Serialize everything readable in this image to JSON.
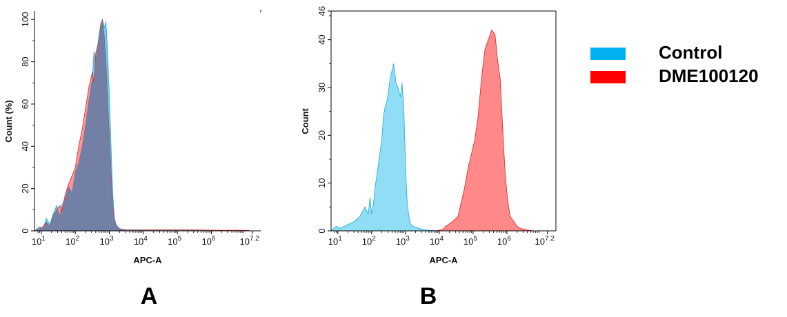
{
  "colors": {
    "control_fill": "#4DC8F0",
    "control_legend": "#00B0F0",
    "sample_fill": "#FF4040",
    "sample_legend": "#FF0000",
    "overlap_fill": "#6E7FA6",
    "axis": "#000000"
  },
  "legend": {
    "items": [
      {
        "label": "Control",
        "color": "#00B0F0"
      },
      {
        "label": "DME100120",
        "color": "#FF0000"
      }
    ]
  },
  "chart_data": [
    {
      "type": "area",
      "panel": "A",
      "xlabel": "APC-A",
      "ylabel": "Count (%)",
      "xscale": "log",
      "xlim": [
        0.8,
        7.45
      ],
      "ylim": [
        0,
        104
      ],
      "xticks": [
        {
          "base": "10",
          "exp": "1",
          "pos": 1
        },
        {
          "base": "10",
          "exp": "2",
          "pos": 2
        },
        {
          "base": "10",
          "exp": "3",
          "pos": 3
        },
        {
          "base": "10",
          "exp": "4",
          "pos": 4
        },
        {
          "base": "10",
          "exp": "5",
          "pos": 5
        },
        {
          "base": "10",
          "exp": "6",
          "pos": 6
        },
        {
          "base": "10",
          "exp": "7.2",
          "pos": 7.2
        }
      ],
      "yticks": [
        {
          "label": "0",
          "pos": 0
        },
        {
          "label": "20",
          "pos": 20
        },
        {
          "label": "40",
          "pos": 40
        },
        {
          "label": "60",
          "pos": 60
        },
        {
          "label": "80",
          "pos": 80
        },
        {
          "label": "100",
          "pos": 100
        }
      ],
      "series": [
        {
          "name": "Control",
          "x": [
            0.8,
            0.95,
            1.05,
            1.15,
            1.25,
            1.35,
            1.45,
            1.55,
            1.6,
            1.7,
            1.8,
            1.9,
            2.0,
            2.1,
            2.2,
            2.3,
            2.4,
            2.5,
            2.55,
            2.6,
            2.7,
            2.75,
            2.8,
            2.85,
            2.9,
            2.95,
            3.0,
            3.05,
            3.1,
            3.15,
            3.2,
            3.3,
            3.5,
            3.8,
            4.2,
            4.8,
            5.5,
            6.2,
            7.0,
            7.2
          ],
          "y": [
            0,
            2,
            1,
            6,
            3,
            8,
            12,
            7,
            12,
            15,
            21,
            18,
            28,
            32,
            40,
            50,
            62,
            72,
            85,
            80,
            93,
            98,
            100,
            96,
            99,
            85,
            65,
            40,
            18,
            6,
            3,
            1,
            0.5,
            0.5,
            0.3,
            0.3,
            0.3,
            0.2,
            0.2,
            0
          ]
        },
        {
          "name": "DME100120",
          "x": [
            0.8,
            0.95,
            1.05,
            1.15,
            1.25,
            1.35,
            1.45,
            1.55,
            1.6,
            1.7,
            1.8,
            1.9,
            2.0,
            2.1,
            2.2,
            2.3,
            2.4,
            2.5,
            2.55,
            2.6,
            2.7,
            2.75,
            2.8,
            2.85,
            2.9,
            2.95,
            3.0,
            3.05,
            3.1,
            3.15,
            3.2,
            3.3,
            3.5,
            3.8,
            4.2,
            4.8,
            5.5,
            6.2,
            7.0,
            7.2
          ],
          "y": [
            0,
            1,
            2,
            4,
            2,
            7,
            10,
            12,
            9,
            17,
            22,
            26,
            30,
            40,
            48,
            58,
            68,
            75,
            70,
            84,
            90,
            98,
            100,
            92,
            80,
            62,
            45,
            28,
            12,
            5,
            2,
            1,
            0.5,
            0.5,
            0.5,
            0.5,
            0.5,
            0.3,
            0.3,
            0
          ]
        }
      ]
    },
    {
      "type": "area",
      "panel": "B",
      "xlabel": "APC-A",
      "ylabel": "Count",
      "xscale": "log",
      "xlim": [
        0.8,
        7.45
      ],
      "ylim": [
        0,
        46
      ],
      "xticks": [
        {
          "base": "10",
          "exp": "1",
          "pos": 1
        },
        {
          "base": "10",
          "exp": "2",
          "pos": 2
        },
        {
          "base": "10",
          "exp": "3",
          "pos": 3
        },
        {
          "base": "10",
          "exp": "4",
          "pos": 4
        },
        {
          "base": "10",
          "exp": "5",
          "pos": 5
        },
        {
          "base": "10",
          "exp": "6",
          "pos": 6
        },
        {
          "base": "10",
          "exp": "7.2",
          "pos": 7.2
        }
      ],
      "yticks": [
        {
          "label": "0",
          "pos": 0
        },
        {
          "label": "10",
          "pos": 10
        },
        {
          "label": "20",
          "pos": 20
        },
        {
          "label": "30",
          "pos": 30
        },
        {
          "label": "40",
          "pos": 40
        },
        {
          "label": "46",
          "pos": 46
        }
      ],
      "series": [
        {
          "name": "Control",
          "x": [
            0.8,
            0.95,
            1.05,
            1.2,
            1.35,
            1.5,
            1.65,
            1.8,
            1.9,
            1.95,
            2.0,
            2.05,
            2.1,
            2.2,
            2.3,
            2.35,
            2.4,
            2.45,
            2.55,
            2.65,
            2.72,
            2.78,
            2.85,
            2.9,
            2.95,
            3.0,
            3.05,
            3.1,
            3.15,
            3.2,
            3.3,
            3.5,
            3.7,
            4.0
          ],
          "y": [
            0,
            1,
            0.5,
            1,
            1.5,
            2,
            3,
            5,
            3.5,
            7,
            3.5,
            5.5,
            9,
            14,
            19,
            24,
            26,
            27,
            32,
            35,
            31,
            30,
            28,
            31,
            26,
            14,
            6,
            3,
            1.5,
            1,
            0.8,
            0.3,
            0.1,
            0
          ]
        },
        {
          "name": "DME100120",
          "x": [
            3.9,
            4.1,
            4.2,
            4.3,
            4.4,
            4.55,
            4.65,
            4.75,
            4.85,
            4.95,
            5.05,
            5.15,
            5.25,
            5.35,
            5.45,
            5.55,
            5.65,
            5.72,
            5.8,
            5.85,
            5.9,
            5.95,
            6.0,
            6.05,
            6.1,
            6.2,
            6.3,
            6.4,
            6.6,
            6.8
          ],
          "y": [
            0,
            0.3,
            1,
            1.5,
            2,
            3,
            6,
            9,
            13,
            16,
            19,
            24,
            32,
            38,
            40,
            42,
            41,
            36,
            32,
            25,
            18,
            12,
            8,
            5,
            3,
            2,
            1,
            0.5,
            0.2,
            0
          ]
        }
      ]
    }
  ],
  "panels": [
    {
      "letter": "A"
    },
    {
      "letter": "B"
    }
  ]
}
